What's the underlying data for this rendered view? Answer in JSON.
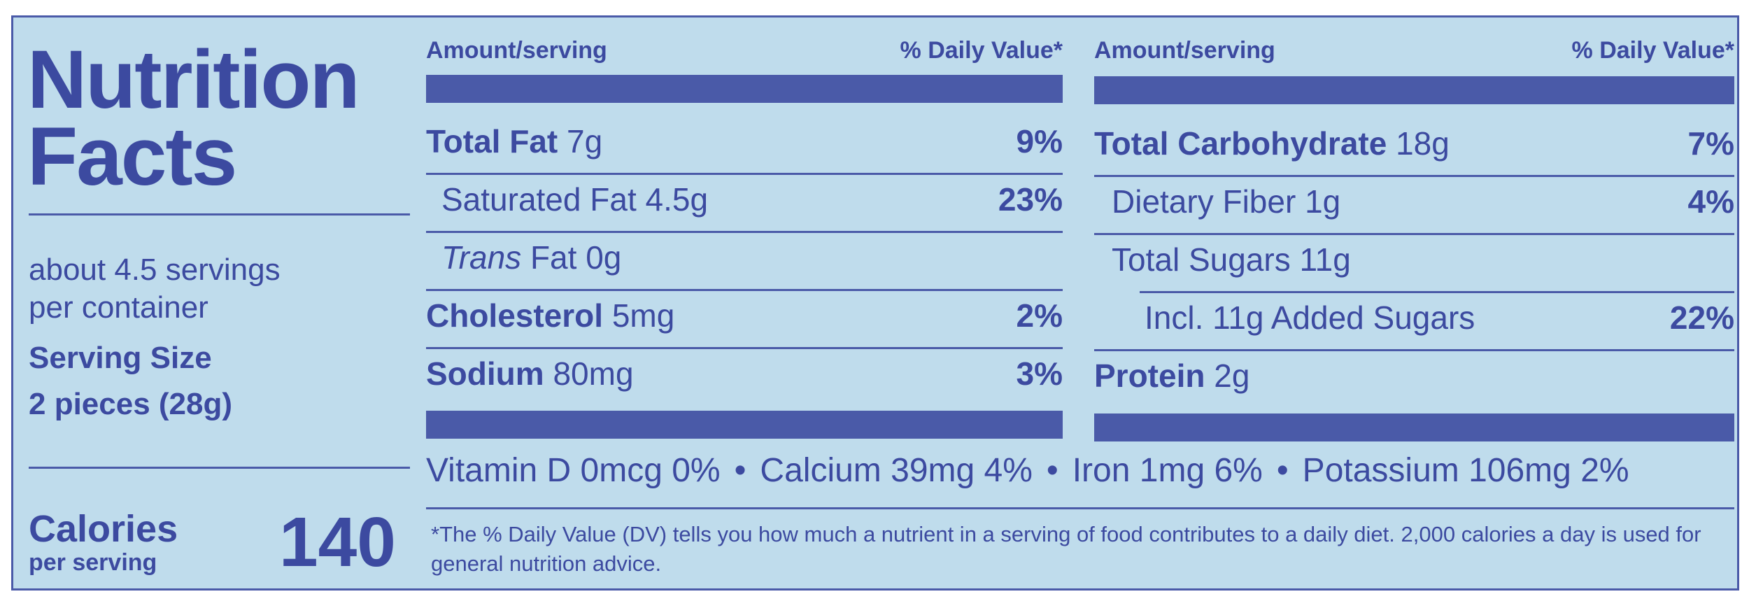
{
  "title_line1": "Nutrition",
  "title_line2": "Facts",
  "servings_line1": "about 4.5 servings",
  "servings_line2": "per container",
  "serving_size_label": "Serving Size",
  "serving_size_value": "2 pieces (28g)",
  "calories_label": "Calories",
  "calories_sub": "per serving",
  "calories_value": "140",
  "left_col": {
    "header_amount": "Amount/serving",
    "header_dv": "% Daily Value*",
    "rows": [
      {
        "name": "Total Fat",
        "amount": "7g",
        "dv": "9%"
      },
      {
        "name": "Saturated Fat",
        "amount": "4.5g",
        "dv": "23%"
      },
      {
        "name_italic": "Trans",
        "name": "Fat",
        "amount": "0g",
        "dv": ""
      },
      {
        "name": "Cholesterol",
        "amount": "5mg",
        "dv": "2%"
      },
      {
        "name": "Sodium",
        "amount": "80mg",
        "dv": "3%"
      }
    ]
  },
  "right_col": {
    "header_amount": "Amount/serving",
    "header_dv": "% Daily Value*",
    "rows": [
      {
        "name": "Total Carbohydrate",
        "amount": "18g",
        "dv": "7%"
      },
      {
        "name": "Dietary Fiber",
        "amount": "1g",
        "dv": "4%"
      },
      {
        "name": "Total Sugars",
        "amount": "11g",
        "dv": ""
      },
      {
        "name": "Incl. 11g Added Sugars",
        "amount": "",
        "dv": "22%"
      },
      {
        "name": "Protein",
        "amount": "2g",
        "dv": ""
      }
    ]
  },
  "vitamins": [
    "Vitamin D 0mcg 0%",
    "Calcium 39mg 4%",
    "Iron 1mg 6%",
    "Potassium 106mg 2%"
  ],
  "bullet": "•",
  "footnote": "*The % Daily Value (DV) tells you how much a nutrient in a serving of food contributes to a daily diet. 2,000 calories a day is used for general nutrition advice.",
  "colors": {
    "background": "#bfdcec",
    "ink": "#3c4aa0",
    "bar": "#4a5aa8"
  }
}
